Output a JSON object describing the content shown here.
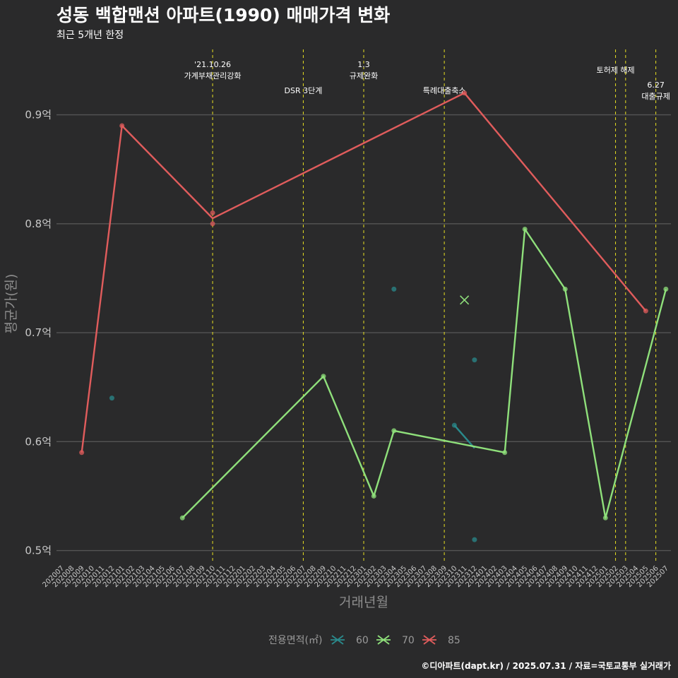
{
  "chart_data": {
    "type": "line",
    "title": "성동 백합맨션 아파트(1990) 매매가격 변화",
    "subtitle": "최근 5개년 한정",
    "xlabel": "거래년월",
    "ylabel": "평균가(원)",
    "caption": "©디아파트(dapt.kr) / 2025.07.31 / 자료=국토교통부 실거래가",
    "y_ticks": [
      {
        "value": 0.5,
        "label": "0.5억"
      },
      {
        "value": 0.6,
        "label": "0.6억"
      },
      {
        "value": 0.7,
        "label": "0.7억"
      },
      {
        "value": 0.8,
        "label": "0.8억"
      },
      {
        "value": 0.9,
        "label": "0.9억"
      }
    ],
    "ylim": [
      0.49,
      0.96
    ],
    "grid": true,
    "categories": [
      "202007",
      "202008",
      "202009",
      "202010",
      "202011",
      "202012",
      "202101",
      "202102",
      "202103",
      "202104",
      "202105",
      "202106",
      "202107",
      "202108",
      "202109",
      "202110",
      "202111",
      "202112",
      "202201",
      "202202",
      "202203",
      "202204",
      "202205",
      "202206",
      "202207",
      "202208",
      "202209",
      "202210",
      "202211",
      "202212",
      "202301",
      "202302",
      "202303",
      "202304",
      "202305",
      "202306",
      "202307",
      "202308",
      "202309",
      "202310",
      "202311",
      "202312",
      "202401",
      "202402",
      "202403",
      "202404",
      "202405",
      "202406",
      "202407",
      "202408",
      "202409",
      "202410",
      "202411",
      "202412",
      "202501",
      "202502",
      "202503",
      "202504",
      "202505",
      "202506",
      "202507"
    ],
    "legend": {
      "title": "전용면적(㎡)",
      "position": "bottom"
    },
    "series": [
      {
        "name": "60",
        "color": "#2a8a8c",
        "line": [
          [
            "202310",
            0.615
          ],
          [
            "202312",
            0.594
          ]
        ],
        "points": [
          [
            "202012",
            0.64
          ],
          [
            "202304",
            0.74
          ],
          [
            "202310",
            0.615
          ],
          [
            "202312",
            0.675
          ],
          [
            "202312",
            0.51
          ]
        ]
      },
      {
        "name": "70",
        "color": "#8fe07b",
        "line": [
          [
            "202107",
            0.53
          ],
          [
            "202209",
            0.66
          ],
          [
            "202302",
            0.55
          ],
          [
            "202304",
            0.61
          ],
          [
            "202403",
            0.59
          ],
          [
            "202405",
            0.795
          ],
          [
            "202409",
            0.74
          ],
          [
            "202501",
            0.53
          ],
          [
            "202507",
            0.74
          ]
        ],
        "points": [
          [
            "202107",
            0.53
          ],
          [
            "202209",
            0.66
          ],
          [
            "202302",
            0.55
          ],
          [
            "202304",
            0.61
          ],
          [
            "202403",
            0.59
          ],
          [
            "202405",
            0.795
          ],
          [
            "202409",
            0.74
          ],
          [
            "202501",
            0.53
          ],
          [
            "202507",
            0.74
          ]
        ],
        "cross": [
          [
            "202311",
            0.73
          ]
        ]
      },
      {
        "name": "85",
        "color": "#e05c5c",
        "line": [
          [
            "202009",
            0.59
          ],
          [
            "202101",
            0.89
          ],
          [
            "202110",
            0.805
          ],
          [
            "202311",
            0.92
          ],
          [
            "202505",
            0.72
          ]
        ],
        "points": [
          [
            "202009",
            0.59
          ],
          [
            "202101",
            0.89
          ],
          [
            "202110",
            0.81
          ],
          [
            "202110",
            0.8
          ],
          [
            "202311",
            0.92
          ],
          [
            "202505",
            0.72
          ]
        ]
      }
    ],
    "events": [
      {
        "month": "202110",
        "lines": [
          "'21.10.26",
          "가계부채관리강화"
        ],
        "row": "top"
      },
      {
        "month": "202207",
        "lines": [
          "DSR 3단계"
        ],
        "row": "bottom"
      },
      {
        "month": "202301",
        "lines": [
          "1.3",
          "규제완화"
        ],
        "row": "top"
      },
      {
        "month": "202309",
        "lines": [
          "특례대출축소"
        ],
        "row": "bottom"
      },
      {
        "month": "202502",
        "lines": [
          "토허제 해제"
        ],
        "row": "mid"
      },
      {
        "month": "202503",
        "lines": [],
        "row": "none"
      },
      {
        "month": "202506",
        "lines": [
          "6.27",
          "대출규제"
        ],
        "row": "low"
      }
    ]
  }
}
